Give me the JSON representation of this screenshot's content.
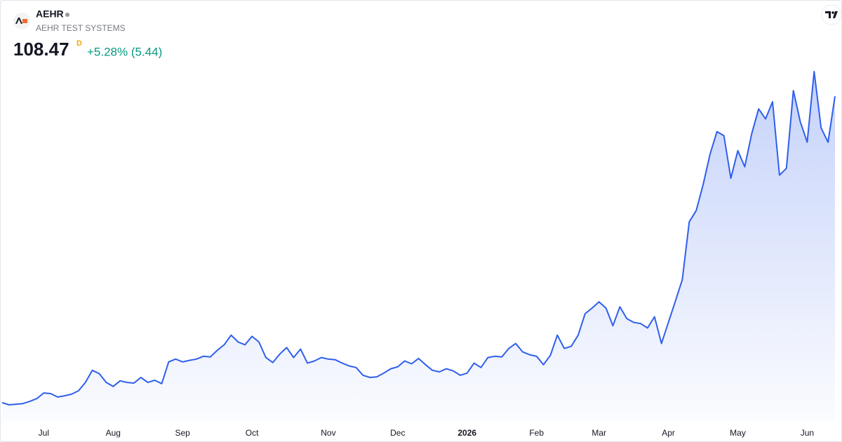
{
  "chart_data": {
    "type": "area",
    "title": "AEHR",
    "subtitle": "AEHR TEST SYSTEMS",
    "price": 108.47,
    "interval": "D",
    "change": "+5.28% (5.44)",
    "color": "#2f5fec",
    "categories": [
      null,
      null,
      null,
      null,
      null,
      null,
      "Jul",
      null,
      null,
      null,
      null,
      null,
      null,
      null,
      null,
      null,
      "Aug",
      null,
      null,
      null,
      null,
      null,
      null,
      null,
      null,
      null,
      "Sep",
      null,
      null,
      null,
      null,
      null,
      null,
      null,
      null,
      null,
      "Oct",
      null,
      null,
      null,
      null,
      null,
      null,
      null,
      null,
      null,
      null,
      "Nov",
      null,
      null,
      null,
      null,
      null,
      null,
      null,
      null,
      null,
      "Dec",
      null,
      null,
      null,
      null,
      null,
      null,
      null,
      null,
      null,
      "2026",
      null,
      null,
      null,
      null,
      null,
      null,
      null,
      null,
      null,
      "Feb",
      null,
      null,
      null,
      null,
      null,
      null,
      null,
      null,
      "Mar",
      null,
      null,
      null,
      null,
      null,
      null,
      null,
      null,
      null,
      "Apr",
      null,
      null,
      null,
      null,
      null,
      null,
      null,
      null,
      null,
      "May",
      null,
      null,
      null,
      null,
      null,
      null,
      null,
      null,
      null,
      "Jun",
      null,
      null,
      null,
      null
    ],
    "values": [
      10.0,
      9.3,
      9.5,
      9.7,
      10.4,
      11.3,
      13.1,
      12.9,
      11.8,
      12.2,
      12.7,
      13.8,
      16.5,
      20.4,
      19.3,
      16.5,
      15.2,
      17.0,
      16.5,
      16.3,
      18.1,
      16.5,
      17.2,
      16.1,
      23.1,
      24.0,
      23.1,
      23.6,
      24.0,
      24.9,
      24.7,
      26.8,
      28.6,
      31.7,
      29.5,
      28.6,
      31.3,
      29.5,
      24.5,
      22.9,
      25.6,
      27.7,
      24.5,
      27.2,
      22.7,
      23.4,
      24.5,
      24.0,
      23.8,
      22.7,
      21.8,
      21.3,
      18.8,
      18.1,
      18.3,
      19.5,
      20.9,
      21.5,
      23.4,
      22.5,
      24.2,
      22.2,
      20.4,
      19.9,
      20.9,
      20.2,
      18.8,
      19.5,
      22.7,
      21.3,
      24.5,
      24.9,
      24.7,
      27.4,
      29.0,
      26.3,
      25.4,
      24.9,
      22.2,
      25.2,
      31.7,
      27.4,
      28.1,
      31.7,
      38.6,
      40.4,
      42.4,
      40.4,
      34.7,
      40.8,
      37.0,
      35.8,
      35.4,
      34.0,
      37.6,
      29.0,
      35.8,
      42.6,
      49.5,
      68.1,
      71.7,
      80.1,
      89.9,
      97.1,
      95.8,
      82.1,
      91.0,
      85.8,
      96.4,
      104.4,
      101.2,
      106.7,
      83.1,
      85.3,
      110.3,
      100.3,
      93.7,
      116.4,
      98.3,
      93.7,
      108.47
    ]
  }
}
